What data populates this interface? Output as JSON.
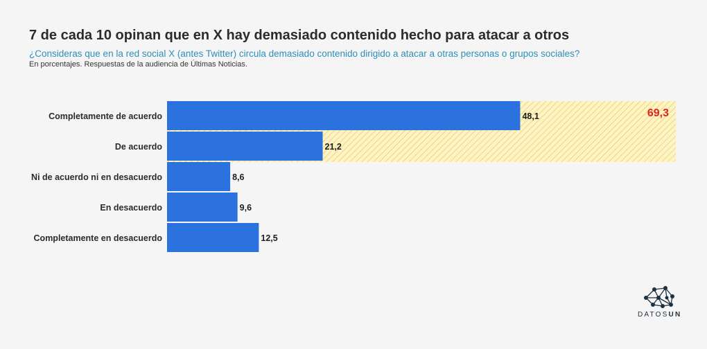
{
  "header": {
    "title": "7 de cada 10 opinan que en X hay demasiado contenido hecho para atacar a otros",
    "subtitle": "¿Consideras que en la red social X (antes Twitter) circula demasiado contenido dirigido a atacar a otras personas o grupos sociales?",
    "note": "En porcentajes. Respuestas de la audiencia de Últimas Noticias."
  },
  "chart_data": {
    "type": "bar",
    "orientation": "horizontal",
    "title": "7 de cada 10 opinan que en X hay demasiado contenido hecho para atacar a otros",
    "categories": [
      "Completamente de acuerdo",
      "De acuerdo",
      "Ni de acuerdo ni en desacuerdo",
      "En desacuerdo",
      "Completamente en desacuerdo"
    ],
    "values": [
      48.1,
      21.2,
      8.6,
      9.6,
      12.5
    ],
    "value_labels": [
      "48,1",
      "21,2",
      "8,6",
      "9,6",
      "12,5"
    ],
    "xlim": [
      0,
      69.3
    ],
    "grid": false,
    "bar_color": "#2b72de",
    "highlight": {
      "categories": [
        "Completamente de acuerdo",
        "De acuerdo"
      ],
      "total": 69.3,
      "total_label": "69,3",
      "fill_color": "#fdf3c4",
      "hatch_color": "#e8c14a",
      "label_color": "#e0241b"
    }
  },
  "branding": {
    "logo_icon": "network-nodes-icon",
    "prefix": "DATOS",
    "suffix": "UN"
  }
}
